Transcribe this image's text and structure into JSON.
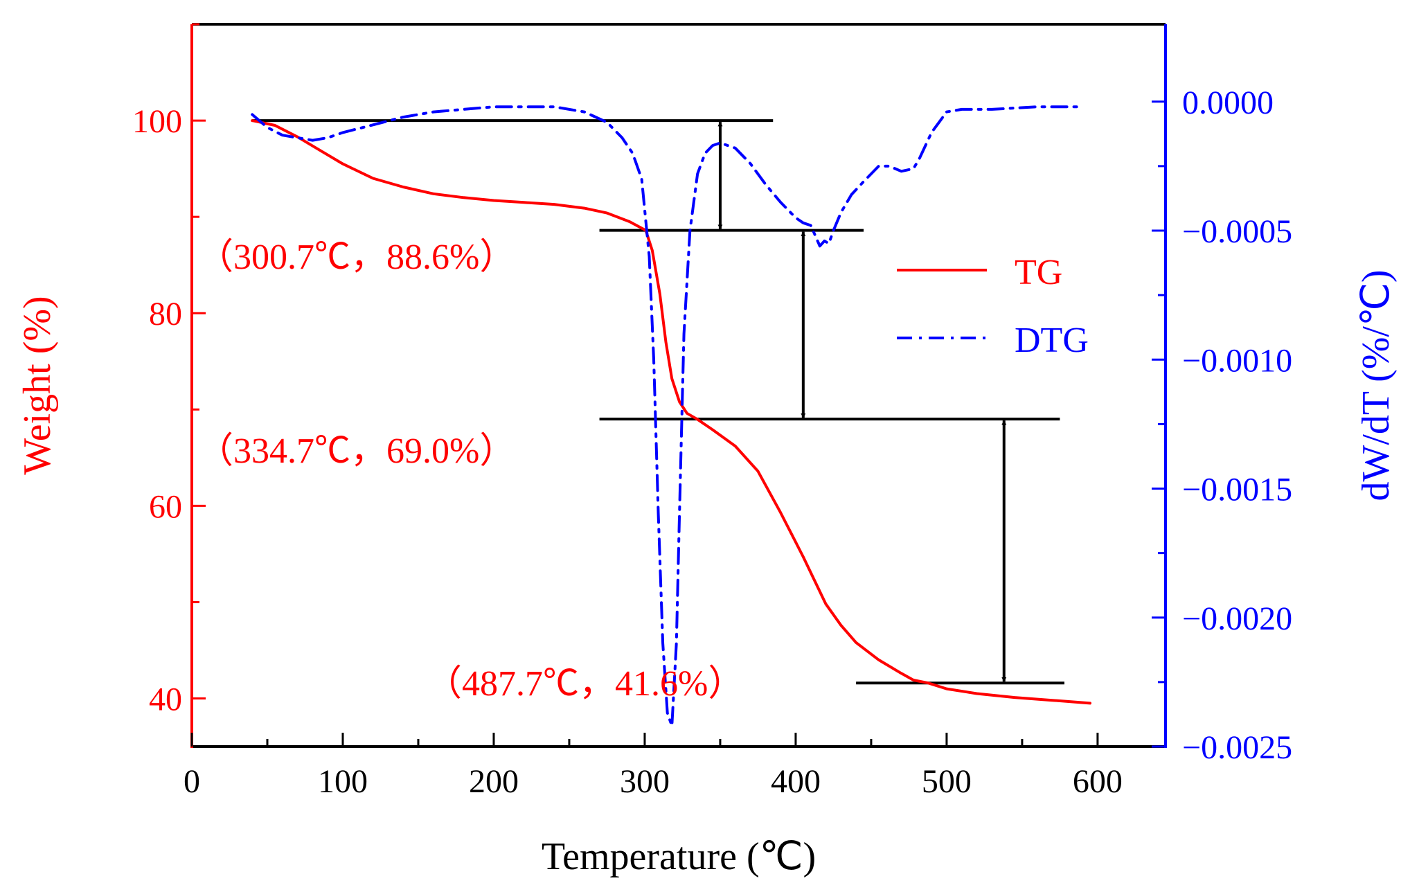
{
  "chart_data": {
    "type": "line",
    "xlabel": "Temperature (℃)",
    "ylabel": "Weight (%)",
    "y2label": "dW/dT (%/℃)",
    "xlim": [
      0,
      645
    ],
    "ylim": [
      35,
      110
    ],
    "y2lim": [
      -0.0025,
      0.0003
    ],
    "xticks": [
      0,
      100,
      200,
      300,
      400,
      500,
      600
    ],
    "xtick_labels": [
      "0",
      "100",
      "200",
      "300",
      "400",
      "500",
      "600"
    ],
    "yticks": [
      40,
      60,
      80,
      100
    ],
    "ytick_labels": [
      "40",
      "60",
      "80",
      "100"
    ],
    "y2ticks": [
      0,
      -0.0005,
      -0.001,
      -0.0015,
      -0.002,
      -0.0025
    ],
    "y2tick_labels": [
      "0.0000",
      "−0.0005",
      "−0.0010",
      "−0.0015",
      "−0.0020",
      "−0.0025"
    ],
    "grid": false,
    "legend_position": "right",
    "colors": {
      "tg": "#ff0000",
      "dtg": "#0000ff",
      "annotation": "#000000",
      "frame": "#000000"
    },
    "series": [
      {
        "name": "TG",
        "axis": "left",
        "style": "solid",
        "x": [
          40,
          55,
          70,
          85,
          100,
          120,
          140,
          160,
          180,
          200,
          220,
          240,
          260,
          275,
          290,
          300.7,
          305,
          310,
          314,
          318,
          323,
          328,
          334.7,
          345,
          360,
          375,
          390,
          405,
          420,
          430,
          440,
          455,
          470,
          478,
          487.7,
          500,
          520,
          545,
          570,
          595
        ],
        "values": [
          100,
          99.5,
          98.3,
          96.9,
          95.5,
          94.0,
          93.1,
          92.4,
          92.0,
          91.7,
          91.5,
          91.3,
          90.9,
          90.4,
          89.5,
          88.6,
          86.5,
          82,
          77,
          73.2,
          70.8,
          69.6,
          69.0,
          67.9,
          66.2,
          63.6,
          59.3,
          54.7,
          49.8,
          47.6,
          45.8,
          44.0,
          42.6,
          41.9,
          41.6,
          41.0,
          40.5,
          40.1,
          39.8,
          39.5
        ]
      },
      {
        "name": "DTG",
        "axis": "right",
        "style": "dash-dot",
        "x": [
          40,
          50,
          60,
          70,
          80,
          90,
          100,
          120,
          140,
          160,
          180,
          200,
          220,
          240,
          260,
          275,
          285,
          292,
          298,
          303,
          306,
          309,
          312,
          315,
          318,
          321,
          323,
          326,
          330,
          335,
          340,
          345,
          350,
          360,
          370,
          380,
          390,
          400,
          405,
          410,
          413,
          416,
          419,
          422,
          425,
          430,
          437,
          445,
          455,
          462,
          470,
          478,
          482,
          490,
          495,
          500,
          510,
          530,
          560,
          590
        ],
        "values": [
          -5e-05,
          -0.0001,
          -0.00013,
          -0.00014,
          -0.00015,
          -0.00014,
          -0.00012,
          -9e-05,
          -6e-05,
          -4e-05,
          -3e-05,
          -2e-05,
          -2e-05,
          -2e-05,
          -4e-05,
          -8e-05,
          -0.00014,
          -0.0002,
          -0.0003,
          -0.0006,
          -0.001,
          -0.0016,
          -0.0021,
          -0.00237,
          -0.00242,
          -0.0021,
          -0.0016,
          -0.0009,
          -0.0005,
          -0.00028,
          -0.0002,
          -0.00017,
          -0.00016,
          -0.00018,
          -0.00024,
          -0.00032,
          -0.00039,
          -0.00045,
          -0.00047,
          -0.00048,
          -0.00052,
          -0.00056,
          -0.00054,
          -0.00055,
          -0.0005,
          -0.00043,
          -0.00036,
          -0.00031,
          -0.00025,
          -0.00025,
          -0.00027,
          -0.00026,
          -0.00022,
          -0.00012,
          -8e-05,
          -4e-05,
          -3e-05,
          -3e-05,
          -2e-05,
          -2e-05
        ]
      }
    ],
    "annotations": [
      {
        "text": "（300.7℃，88.6%）",
        "x": 300.7,
        "y": 88.6
      },
      {
        "text": "（334.7℃，69.0%）",
        "x": 334.7,
        "y": 69.0
      },
      {
        "text": "（487.7℃，41.6%）",
        "x": 487.7,
        "y": 41.6
      }
    ],
    "reference_lines": [
      {
        "y": 100,
        "x1": 40,
        "x2": 385
      },
      {
        "y": 88.6,
        "x1": 270,
        "x2": 445
      },
      {
        "y": 69.0,
        "x1": 270,
        "x2": 575
      },
      {
        "y": 41.6,
        "x1": 440,
        "x2": 578
      }
    ],
    "double_arrows": [
      {
        "x": 350,
        "y_top": 100,
        "y_bottom": 88.6
      },
      {
        "x": 405,
        "y_top": 88.6,
        "y_bottom": 69.0
      },
      {
        "x": 538,
        "y_top": 69.0,
        "y_bottom": 41.6
      }
    ]
  }
}
